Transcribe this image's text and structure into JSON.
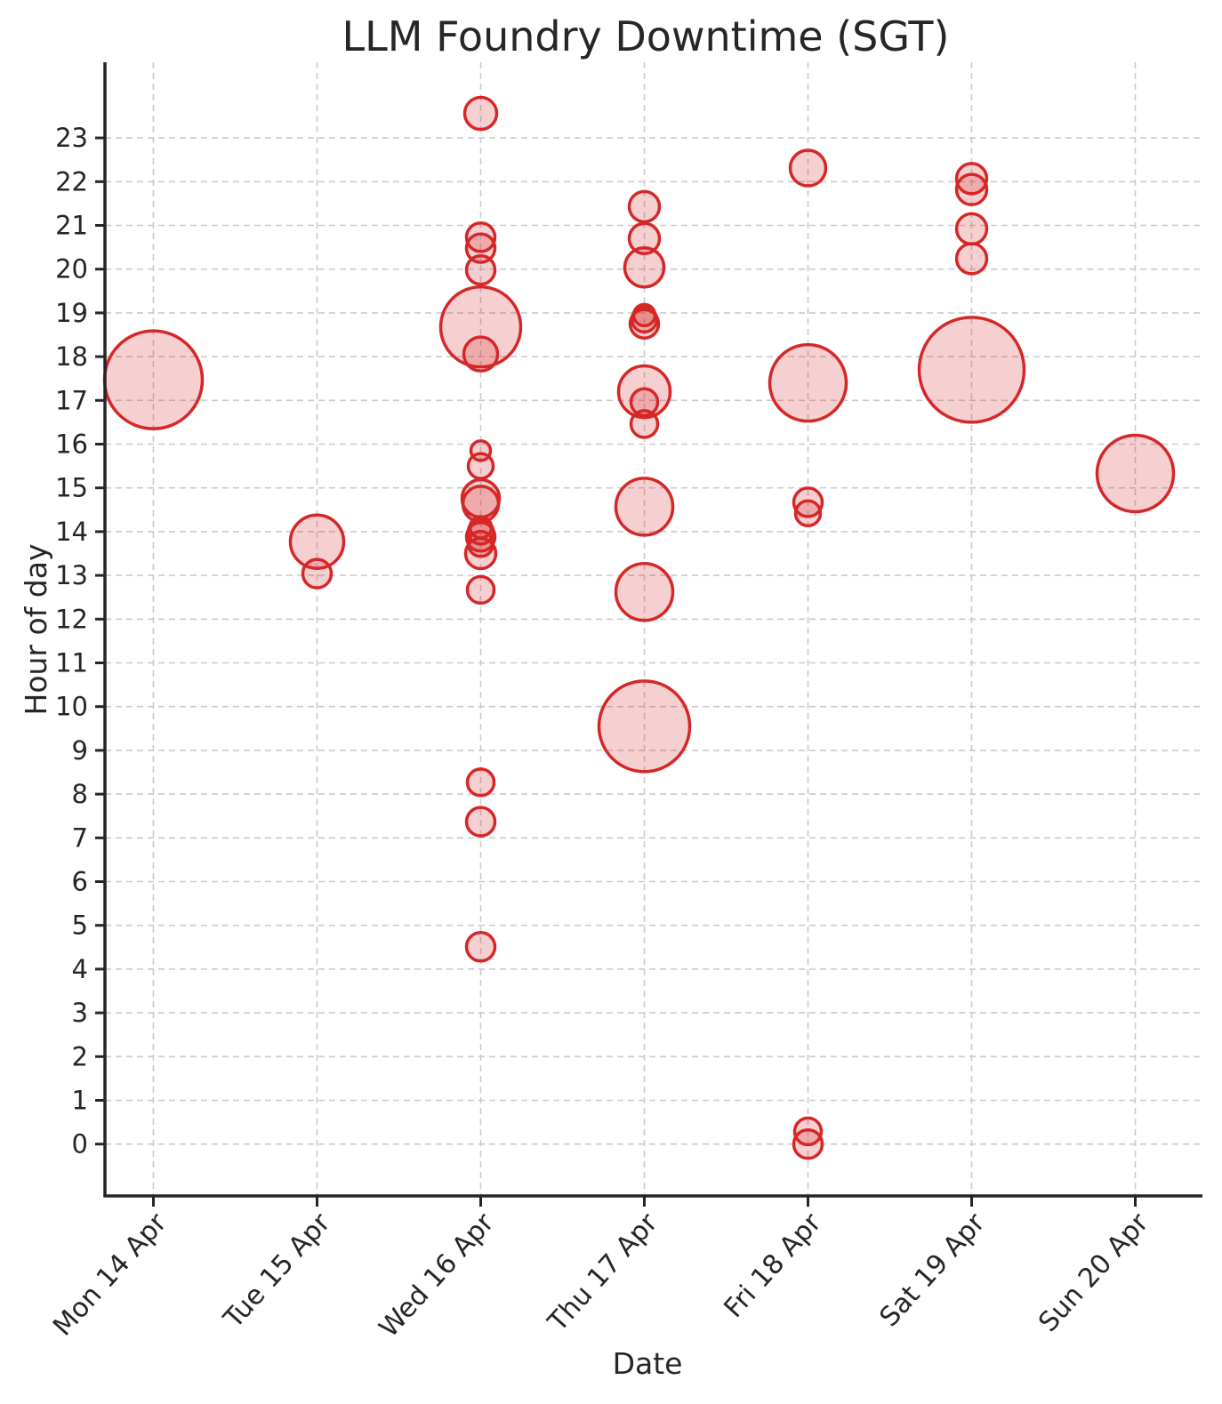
{
  "page": {
    "background": "#ffffff"
  },
  "chart_data": {
    "type": "scatter",
    "title": "LLM Foundry Downtime (SGT)",
    "xlabel": "Date",
    "ylabel": "Hour of day",
    "x_tick_labels": [
      "Mon 14 Apr",
      "Tue 15 Apr",
      "Wed 16 Apr",
      "Thu 17 Apr",
      "Fri 18 Apr",
      "Sat 19 Apr",
      "Sun 20 Apr"
    ],
    "y_tick_labels": [
      "0",
      "1",
      "2",
      "3",
      "4",
      "5",
      "6",
      "7",
      "8",
      "9",
      "10",
      "11",
      "12",
      "13",
      "14",
      "15",
      "16",
      "17",
      "18",
      "19",
      "20",
      "21",
      "22",
      "23"
    ],
    "y_axis_hours_range": [
      -1.2,
      24.7
    ],
    "grid": true,
    "legend": false,
    "style": {
      "bubble_color": "#d62728",
      "bubble_fill_opacity": 0.22,
      "bubble_stroke_width": 3.5,
      "grid_color": "#cbcbcb",
      "axis_color": "#262626",
      "background": "#ffffff"
    },
    "points": [
      {
        "date": "Mon 14 Apr",
        "day_index": 0,
        "hour": 17.47,
        "r": 55
      },
      {
        "date": "Tue 15 Apr",
        "day_index": 1,
        "hour": 13.77,
        "r": 30
      },
      {
        "date": "Tue 15 Apr",
        "day_index": 1,
        "hour": 13.04,
        "r": 16
      },
      {
        "date": "Wed 16 Apr",
        "day_index": 2,
        "hour": 23.56,
        "r": 18
      },
      {
        "date": "Wed 16 Apr",
        "day_index": 2,
        "hour": 20.73,
        "r": 16
      },
      {
        "date": "Wed 16 Apr",
        "day_index": 2,
        "hour": 20.48,
        "r": 16
      },
      {
        "date": "Wed 16 Apr",
        "day_index": 2,
        "hour": 19.98,
        "r": 16
      },
      {
        "date": "Wed 16 Apr",
        "day_index": 2,
        "hour": 18.68,
        "r": 45
      },
      {
        "date": "Wed 16 Apr",
        "day_index": 2,
        "hour": 18.06,
        "r": 19
      },
      {
        "date": "Wed 16 Apr",
        "day_index": 2,
        "hour": 15.85,
        "r": 11
      },
      {
        "date": "Wed 16 Apr",
        "day_index": 2,
        "hour": 15.5,
        "r": 14
      },
      {
        "date": "Wed 16 Apr",
        "day_index": 2,
        "hour": 14.76,
        "r": 21
      },
      {
        "date": "Wed 16 Apr",
        "day_index": 2,
        "hour": 14.63,
        "r": 20
      },
      {
        "date": "Wed 16 Apr",
        "day_index": 2,
        "hour": 14.1,
        "r": 12
      },
      {
        "date": "Wed 16 Apr",
        "day_index": 2,
        "hour": 14.0,
        "r": 14
      },
      {
        "date": "Wed 16 Apr",
        "day_index": 2,
        "hour": 13.88,
        "r": 16
      },
      {
        "date": "Wed 16 Apr",
        "day_index": 2,
        "hour": 13.72,
        "r": 14
      },
      {
        "date": "Wed 16 Apr",
        "day_index": 2,
        "hour": 13.5,
        "r": 17
      },
      {
        "date": "Wed 16 Apr",
        "day_index": 2,
        "hour": 12.67,
        "r": 15
      },
      {
        "date": "Wed 16 Apr",
        "day_index": 2,
        "hour": 8.27,
        "r": 15
      },
      {
        "date": "Wed 16 Apr",
        "day_index": 2,
        "hour": 7.37,
        "r": 16
      },
      {
        "date": "Wed 16 Apr",
        "day_index": 2,
        "hour": 4.51,
        "r": 16
      },
      {
        "date": "Thu 17 Apr",
        "day_index": 3,
        "hour": 21.43,
        "r": 17
      },
      {
        "date": "Thu 17 Apr",
        "day_index": 3,
        "hour": 20.7,
        "r": 17
      },
      {
        "date": "Thu 17 Apr",
        "day_index": 3,
        "hour": 20.04,
        "r": 22
      },
      {
        "date": "Thu 17 Apr",
        "day_index": 3,
        "hour": 18.95,
        "r": 12
      },
      {
        "date": "Thu 17 Apr",
        "day_index": 3,
        "hour": 18.85,
        "r": 14
      },
      {
        "date": "Thu 17 Apr",
        "day_index": 3,
        "hour": 18.75,
        "r": 16
      },
      {
        "date": "Thu 17 Apr",
        "day_index": 3,
        "hour": 17.2,
        "r": 29
      },
      {
        "date": "Thu 17 Apr",
        "day_index": 3,
        "hour": 16.96,
        "r": 15
      },
      {
        "date": "Thu 17 Apr",
        "day_index": 3,
        "hour": 16.46,
        "r": 15
      },
      {
        "date": "Thu 17 Apr",
        "day_index": 3,
        "hour": 14.57,
        "r": 32
      },
      {
        "date": "Thu 17 Apr",
        "day_index": 3,
        "hour": 12.62,
        "r": 32
      },
      {
        "date": "Thu 17 Apr",
        "day_index": 3,
        "hour": 9.55,
        "r": 51
      },
      {
        "date": "Fri 18 Apr",
        "day_index": 4,
        "hour": 22.31,
        "r": 20
      },
      {
        "date": "Fri 18 Apr",
        "day_index": 4,
        "hour": 17.4,
        "r": 43
      },
      {
        "date": "Fri 18 Apr",
        "day_index": 4,
        "hour": 14.67,
        "r": 16
      },
      {
        "date": "Fri 18 Apr",
        "day_index": 4,
        "hour": 14.42,
        "r": 14
      },
      {
        "date": "Fri 18 Apr",
        "day_index": 4,
        "hour": 0.29,
        "r": 15
      },
      {
        "date": "Fri 18 Apr",
        "day_index": 4,
        "hour": 0.0,
        "r": 16
      },
      {
        "date": "Sat 19 Apr",
        "day_index": 5,
        "hour": 22.07,
        "r": 17
      },
      {
        "date": "Sat 19 Apr",
        "day_index": 5,
        "hour": 21.82,
        "r": 17
      },
      {
        "date": "Sat 19 Apr",
        "day_index": 5,
        "hour": 20.92,
        "r": 17
      },
      {
        "date": "Sat 19 Apr",
        "day_index": 5,
        "hour": 20.24,
        "r": 17
      },
      {
        "date": "Sat 19 Apr",
        "day_index": 5,
        "hour": 17.7,
        "r": 59
      },
      {
        "date": "Sun 20 Apr",
        "day_index": 6,
        "hour": 15.33,
        "r": 43
      }
    ]
  }
}
